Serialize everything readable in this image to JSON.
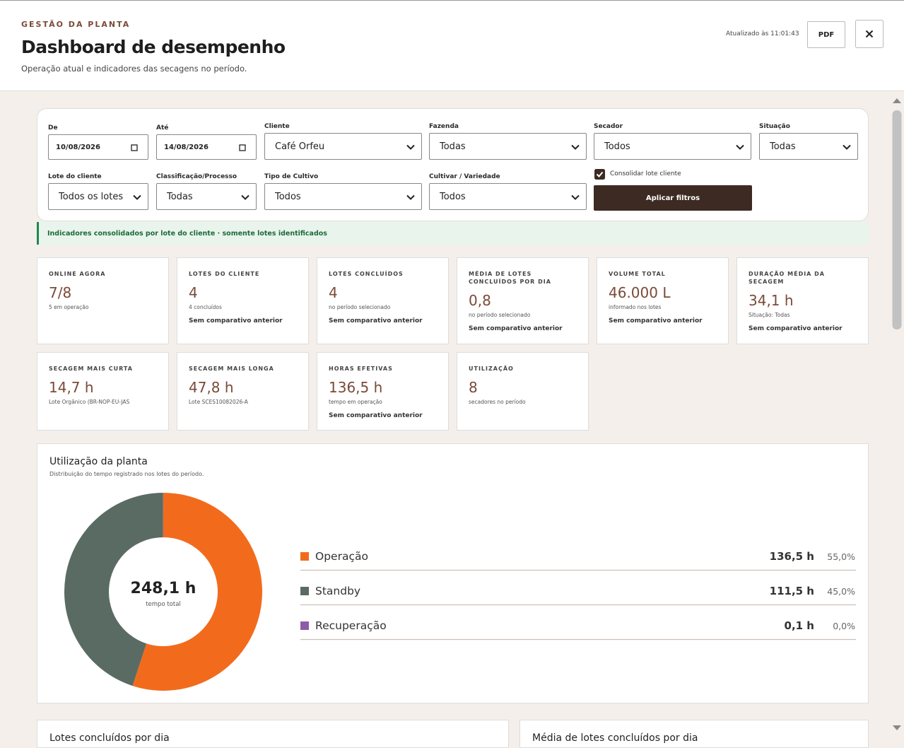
{
  "header": {
    "eyebrow": "GESTÃO DA PLANTA",
    "title": "Dashboard de desempenho",
    "subtitle": "Operação atual e indicadores das secagens no período.",
    "updated": "Atualizado às 11:01:43",
    "pdf": "PDF"
  },
  "filters": [
    {
      "label": "De",
      "value": "10/08/2026"
    },
    {
      "label": "Até",
      "value": "14/08/2026"
    },
    {
      "label": "Cliente",
      "value": "Café Orfeu"
    },
    {
      "label": "Fazenda",
      "value": "Todas"
    },
    {
      "label": "Secador",
      "value": "Todos"
    },
    {
      "label": "Situação",
      "value": "Todas"
    },
    {
      "label": "Lote do cliente",
      "value": "Todos os lotes c"
    },
    {
      "label": "Classificação/Processo",
      "value": "Todas"
    },
    {
      "label": "Tipo de Cultivo",
      "value": "Todos"
    },
    {
      "label": "Cultivar / Variedade",
      "value": "Todos"
    }
  ],
  "consolidate": "Consolidar lote cliente",
  "apply": "Aplicar filtros",
  "banner": "Indicadores consolidados por lote do cliente · somente lotes identificados",
  "cards": [
    {
      "label": "ONLINE AGORA",
      "value": "7/8",
      "note": "5 em operação"
    },
    {
      "label": "LOTES DO CLIENTE",
      "value": "4",
      "note": "4 concluídos",
      "compare": "Sem comparativo anterior"
    },
    {
      "label": "LOTES CONCLUÍDOS",
      "value": "4",
      "note": "no período selecionado",
      "compare": "Sem comparativo anterior"
    },
    {
      "label": "MÉDIA DE LOTES CONCLUÍDOS POR DIA",
      "value": "0,8",
      "note": "no período selecionado",
      "compare": "Sem comparativo anterior"
    },
    {
      "label": "VOLUME TOTAL",
      "value": "46.000 L",
      "note": "informado nos lotes",
      "compare": "Sem comparativo anterior"
    },
    {
      "label": "DURAÇÃO MÉDIA DA SECAGEM",
      "value": "34,1 h",
      "note": "Situação: Todas",
      "compare": "Sem comparativo anterior"
    },
    {
      "label": "SECAGEM MAIS CURTA",
      "value": "14,7 h",
      "note": "Lote Orgânico (BR-NOP-EU-JAS"
    },
    {
      "label": "SECAGEM MAIS LONGA",
      "value": "47,8 h",
      "note": "Lote SCES10082026-A"
    },
    {
      "label": "HORAS EFETIVAS",
      "value": "136,5 h",
      "note": "tempo em operação",
      "compare": "Sem comparativo anterior"
    },
    {
      "label": "UTILIZAÇÃO",
      "value": "8",
      "note": "secadores no período"
    }
  ],
  "chart_data": {
    "type": "pie",
    "title": "Utilização da planta",
    "subtitle": "Distribuição do tempo registrado nos lotes do período.",
    "categories": [
      "Operação",
      "Standby",
      "Recuperação"
    ],
    "values": [
      136.5,
      111.5,
      0.1
    ],
    "value_labels": [
      "136,5 h",
      "111,5 h",
      "0,1 h"
    ],
    "shares": [
      {
        "value": 55.0,
        "label": "55,0%"
      },
      {
        "value": 45.0,
        "label": "45,0%"
      },
      {
        "value": 0.0,
        "label": "0,0%"
      }
    ],
    "colors": [
      "#f26b1d",
      "#5a6b63",
      "#8e5ba8"
    ],
    "total": {
      "value": 248.1,
      "label": "248,1 h"
    },
    "total_caption": "tempo total"
  },
  "panels": [
    "Lotes concluídos por dia",
    "Média de lotes concluídos por dia"
  ]
}
